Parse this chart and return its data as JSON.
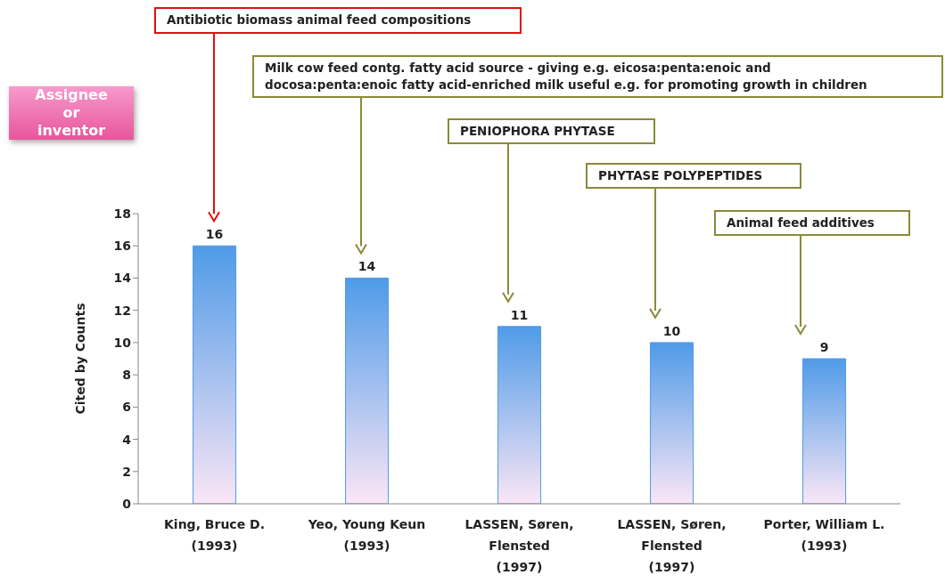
{
  "chart_data": {
    "type": "bar",
    "ylabel": "Cited by Counts",
    "categories": [
      "King, Bruce D.\n\n(1993)",
      "Yeo, Young Keun\n\n(1993)",
      "LASSEN, Søren,\nFlensted\n(1997)",
      "LASSEN, Søren,\nFlensted\n(1997)",
      "Porter, William L.\n\n(1993)"
    ],
    "values": [
      16,
      14,
      11,
      10,
      9
    ],
    "color": "#4f9be8",
    "data_labels": true,
    "ylim": [
      0,
      18
    ],
    "yticks": [
      0,
      2,
      4,
      6,
      8,
      10,
      12,
      14,
      16,
      18
    ],
    "annotations": [
      "Assignee\nor\ninventor",
      "Antibiotic biomass animal feed compositions",
      "Milk cow feed contg. fatty acid source - giving e.g. eicosa:penta:enoic and\ndocosa:penta:enoic fatty acid-enriched milk useful e.g. for promoting growth in children",
      "PENIOPHORA PHYTASE",
      "PHYTASE POLYPEPTIDES",
      "Animal feed additives"
    ]
  }
}
